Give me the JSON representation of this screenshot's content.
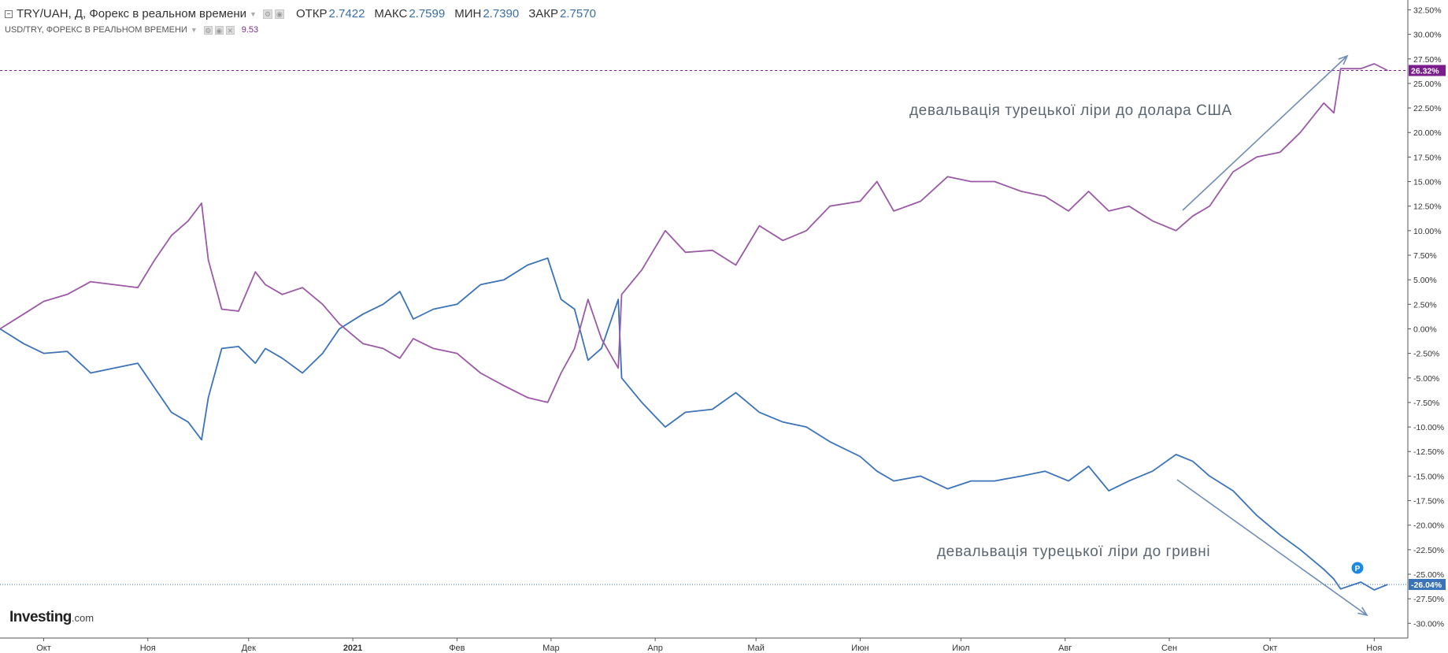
{
  "header": {
    "symbol_title": "TRY/UAH, Д, Форекс в реальном времени",
    "open_label": "ОТКР",
    "open_value": "2.7422",
    "high_label": "МАКС",
    "high_value": "2.7599",
    "low_label": "МИН",
    "low_value": "2.7390",
    "close_label": "ЗАКР",
    "close_value": "2.7570",
    "compare_title": "USD/TRY, ФОРЕКС В РЕАЛЬНОМ ВРЕМЕНИ",
    "compare_value": "9.53"
  },
  "annotations": {
    "top": "девальвація турецької ліри до долара США",
    "bottom": "девальвація турецької ліри до гривні"
  },
  "logo": {
    "main": "Investing",
    "tld": ".com"
  },
  "marker_label": "P",
  "colors": {
    "try_uah": "#3b73b9",
    "usd_try": "#9b59a6",
    "usd_try_badge": "#7b1d8c",
    "annotation_arrow": "#6f8db3",
    "axis": "#555555",
    "text": "#333333"
  },
  "chart_data": {
    "type": "line",
    "xlabel": "",
    "ylabel": "",
    "ylim": [
      -31.5,
      33.5
    ],
    "y_ticks": [
      32.5,
      30,
      27.5,
      25,
      22.5,
      20,
      17.5,
      15,
      12.5,
      10,
      7.5,
      5,
      2.5,
      0,
      -2.5,
      -5,
      -7.5,
      -10,
      -12.5,
      -15,
      -17.5,
      -20,
      -22.5,
      -25,
      -27.5,
      -30
    ],
    "y_axis_side": "right",
    "y_tick_format": "percent_2dp",
    "x_ticks": [
      {
        "label": "Окт",
        "date": "2020-10-01",
        "bold": false
      },
      {
        "label": "Ноя",
        "date": "2020-11-01",
        "bold": false
      },
      {
        "label": "Дек",
        "date": "2020-12-01",
        "bold": false
      },
      {
        "label": "2021",
        "date": "2021-01-01",
        "bold": true
      },
      {
        "label": "Фев",
        "date": "2021-02-01",
        "bold": false
      },
      {
        "label": "Мар",
        "date": "2021-03-01",
        "bold": false
      },
      {
        "label": "Апр",
        "date": "2021-04-01",
        "bold": false
      },
      {
        "label": "Май",
        "date": "2021-05-01",
        "bold": false
      },
      {
        "label": "Июн",
        "date": "2021-06-01",
        "bold": false
      },
      {
        "label": "Июл",
        "date": "2021-07-01",
        "bold": false
      },
      {
        "label": "Авг",
        "date": "2021-08-01",
        "bold": false
      },
      {
        "label": "Сен",
        "date": "2021-09-01",
        "bold": false
      },
      {
        "label": "Окт",
        "date": "2021-10-01",
        "bold": false
      },
      {
        "label": "Ноя",
        "date": "2021-11-01",
        "bold": false
      }
    ],
    "xlim": [
      "2020-09-18",
      "2021-11-11"
    ],
    "grid": false,
    "last_value_badges": [
      {
        "series": "USD/TRY",
        "value": 26.32,
        "label": "26.32%"
      },
      {
        "series": "TRY/UAH",
        "value": -26.04,
        "label": "-26.04%"
      }
    ],
    "series": [
      {
        "name": "TRY/UAH",
        "points": [
          [
            "2020-09-18",
            0
          ],
          [
            "2020-09-25",
            -1.5
          ],
          [
            "2020-10-01",
            -2.5
          ],
          [
            "2020-10-08",
            -2.3
          ],
          [
            "2020-10-15",
            -4.5
          ],
          [
            "2020-10-22",
            -4
          ],
          [
            "2020-10-29",
            -3.5
          ],
          [
            "2020-11-03",
            -6
          ],
          [
            "2020-11-08",
            -8.5
          ],
          [
            "2020-11-13",
            -9.5
          ],
          [
            "2020-11-17",
            -11.3
          ],
          [
            "2020-11-19",
            -7
          ],
          [
            "2020-11-23",
            -2
          ],
          [
            "2020-11-28",
            -1.8
          ],
          [
            "2020-12-03",
            -3.5
          ],
          [
            "2020-12-06",
            -2
          ],
          [
            "2020-12-11",
            -3
          ],
          [
            "2020-12-17",
            -4.5
          ],
          [
            "2020-12-23",
            -2.5
          ],
          [
            "2020-12-28",
            0
          ],
          [
            "2021-01-04",
            1.5
          ],
          [
            "2021-01-10",
            2.5
          ],
          [
            "2021-01-15",
            3.8
          ],
          [
            "2021-01-19",
            1
          ],
          [
            "2021-01-25",
            2
          ],
          [
            "2021-02-01",
            2.5
          ],
          [
            "2021-02-08",
            4.5
          ],
          [
            "2021-02-15",
            5
          ],
          [
            "2021-02-22",
            6.5
          ],
          [
            "2021-02-28",
            7.2
          ],
          [
            "2021-03-04",
            3
          ],
          [
            "2021-03-08",
            2
          ],
          [
            "2021-03-12",
            -3.2
          ],
          [
            "2021-03-16",
            -2
          ],
          [
            "2021-03-21",
            3
          ],
          [
            "2021-03-22",
            -5
          ],
          [
            "2021-03-28",
            -7.5
          ],
          [
            "2021-04-04",
            -10
          ],
          [
            "2021-04-10",
            -8.5
          ],
          [
            "2021-04-18",
            -8.2
          ],
          [
            "2021-04-25",
            -6.5
          ],
          [
            "2021-05-02",
            -8.5
          ],
          [
            "2021-05-09",
            -9.5
          ],
          [
            "2021-05-16",
            -10
          ],
          [
            "2021-05-23",
            -11.5
          ],
          [
            "2021-06-01",
            -13
          ],
          [
            "2021-06-06",
            -14.5
          ],
          [
            "2021-06-11",
            -15.5
          ],
          [
            "2021-06-19",
            -15
          ],
          [
            "2021-06-27",
            -16.3
          ],
          [
            "2021-07-04",
            -15.5
          ],
          [
            "2021-07-11",
            -15.5
          ],
          [
            "2021-07-19",
            -15
          ],
          [
            "2021-07-26",
            -14.5
          ],
          [
            "2021-08-02",
            -15.5
          ],
          [
            "2021-08-08",
            -14
          ],
          [
            "2021-08-14",
            -16.5
          ],
          [
            "2021-08-20",
            -15.5
          ],
          [
            "2021-08-27",
            -14.5
          ],
          [
            "2021-09-03",
            -12.8
          ],
          [
            "2021-09-08",
            -13.5
          ],
          [
            "2021-09-13",
            -15
          ],
          [
            "2021-09-20",
            -16.5
          ],
          [
            "2021-09-27",
            -19
          ],
          [
            "2021-10-04",
            -21
          ],
          [
            "2021-10-10",
            -22.5
          ],
          [
            "2021-10-17",
            -24.5
          ],
          [
            "2021-10-20",
            -25.5
          ],
          [
            "2021-10-22",
            -26.5
          ],
          [
            "2021-10-28",
            -25.8
          ],
          [
            "2021-11-01",
            -26.6
          ],
          [
            "2021-11-05",
            -26.04
          ]
        ]
      },
      {
        "name": "USD/TRY",
        "points": [
          [
            "2020-09-18",
            0
          ],
          [
            "2020-09-25",
            1.5
          ],
          [
            "2020-10-01",
            2.8
          ],
          [
            "2020-10-08",
            3.5
          ],
          [
            "2020-10-15",
            4.8
          ],
          [
            "2020-10-22",
            4.5
          ],
          [
            "2020-10-29",
            4.2
          ],
          [
            "2020-11-03",
            7
          ],
          [
            "2020-11-08",
            9.5
          ],
          [
            "2020-11-13",
            11
          ],
          [
            "2020-11-17",
            12.8
          ],
          [
            "2020-11-19",
            7
          ],
          [
            "2020-11-23",
            2
          ],
          [
            "2020-11-28",
            1.8
          ],
          [
            "2020-12-03",
            5.8
          ],
          [
            "2020-12-06",
            4.5
          ],
          [
            "2020-12-11",
            3.5
          ],
          [
            "2020-12-17",
            4.2
          ],
          [
            "2020-12-23",
            2.5
          ],
          [
            "2020-12-28",
            0.5
          ],
          [
            "2021-01-04",
            -1.5
          ],
          [
            "2021-01-10",
            -2
          ],
          [
            "2021-01-15",
            -3
          ],
          [
            "2021-01-19",
            -1
          ],
          [
            "2021-01-25",
            -2
          ],
          [
            "2021-02-01",
            -2.5
          ],
          [
            "2021-02-08",
            -4.5
          ],
          [
            "2021-02-15",
            -5.8
          ],
          [
            "2021-02-22",
            -7
          ],
          [
            "2021-02-28",
            -7.5
          ],
          [
            "2021-03-04",
            -4.5
          ],
          [
            "2021-03-08",
            -2
          ],
          [
            "2021-03-12",
            3
          ],
          [
            "2021-03-16",
            -1
          ],
          [
            "2021-03-21",
            -4
          ],
          [
            "2021-03-22",
            3.5
          ],
          [
            "2021-03-28",
            6
          ],
          [
            "2021-04-04",
            10
          ],
          [
            "2021-04-10",
            7.8
          ],
          [
            "2021-04-18",
            8
          ],
          [
            "2021-04-25",
            6.5
          ],
          [
            "2021-05-02",
            10.5
          ],
          [
            "2021-05-09",
            9
          ],
          [
            "2021-05-16",
            10
          ],
          [
            "2021-05-23",
            12.5
          ],
          [
            "2021-06-01",
            13
          ],
          [
            "2021-06-06",
            15
          ],
          [
            "2021-06-11",
            12
          ],
          [
            "2021-06-19",
            13
          ],
          [
            "2021-06-27",
            15.5
          ],
          [
            "2021-07-04",
            15
          ],
          [
            "2021-07-11",
            15
          ],
          [
            "2021-07-19",
            14
          ],
          [
            "2021-07-26",
            13.5
          ],
          [
            "2021-08-02",
            12
          ],
          [
            "2021-08-08",
            14
          ],
          [
            "2021-08-14",
            12
          ],
          [
            "2021-08-20",
            12.5
          ],
          [
            "2021-08-27",
            11
          ],
          [
            "2021-09-03",
            10
          ],
          [
            "2021-09-08",
            11.5
          ],
          [
            "2021-09-13",
            12.5
          ],
          [
            "2021-09-20",
            16
          ],
          [
            "2021-09-27",
            17.5
          ],
          [
            "2021-10-04",
            18
          ],
          [
            "2021-10-10",
            20
          ],
          [
            "2021-10-17",
            23
          ],
          [
            "2021-10-20",
            22
          ],
          [
            "2021-10-22",
            26.5
          ],
          [
            "2021-10-28",
            26.5
          ],
          [
            "2021-11-01",
            27
          ],
          [
            "2021-11-05",
            26.32
          ]
        ]
      }
    ]
  }
}
